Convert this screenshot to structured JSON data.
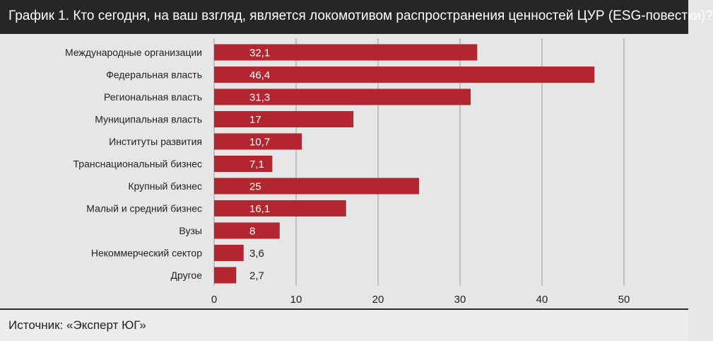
{
  "title": "График 1. Кто сегодня, на ваш взгляд, является локомотивом распространения ценностей ЦУР (ESG-повестки)?",
  "source": "Источник: «Эксперт ЮГ»",
  "colors": {
    "bar": "#b3262f",
    "grid": "#9a9a9a",
    "title_bg": "#262626"
  },
  "chart_data": {
    "type": "bar",
    "orientation": "horizontal",
    "categories": [
      "Международные организации",
      "Федеральная власть",
      "Региональная власть",
      "Муниципальная власть",
      "Институты развития",
      "Транснациональный бизнес",
      "Крупный бизнес",
      "Малый и средний бизнес",
      "Вузы",
      "Некоммерческий сектор",
      "Другое"
    ],
    "values": [
      32.1,
      46.4,
      31.3,
      17,
      10.7,
      7.1,
      25,
      16.1,
      8,
      3.6,
      2.7
    ],
    "value_labels": [
      "32,1",
      "46,4",
      "31,3",
      "17",
      "10,7",
      "7,1",
      "25",
      "16,1",
      "8",
      "3,6",
      "2,7"
    ],
    "xlim": [
      0,
      50
    ],
    "xticks": [
      0,
      10,
      20,
      30,
      40,
      50
    ],
    "xtick_labels": [
      "0",
      "10",
      "20",
      "30",
      "40",
      "50"
    ],
    "grid": true
  }
}
